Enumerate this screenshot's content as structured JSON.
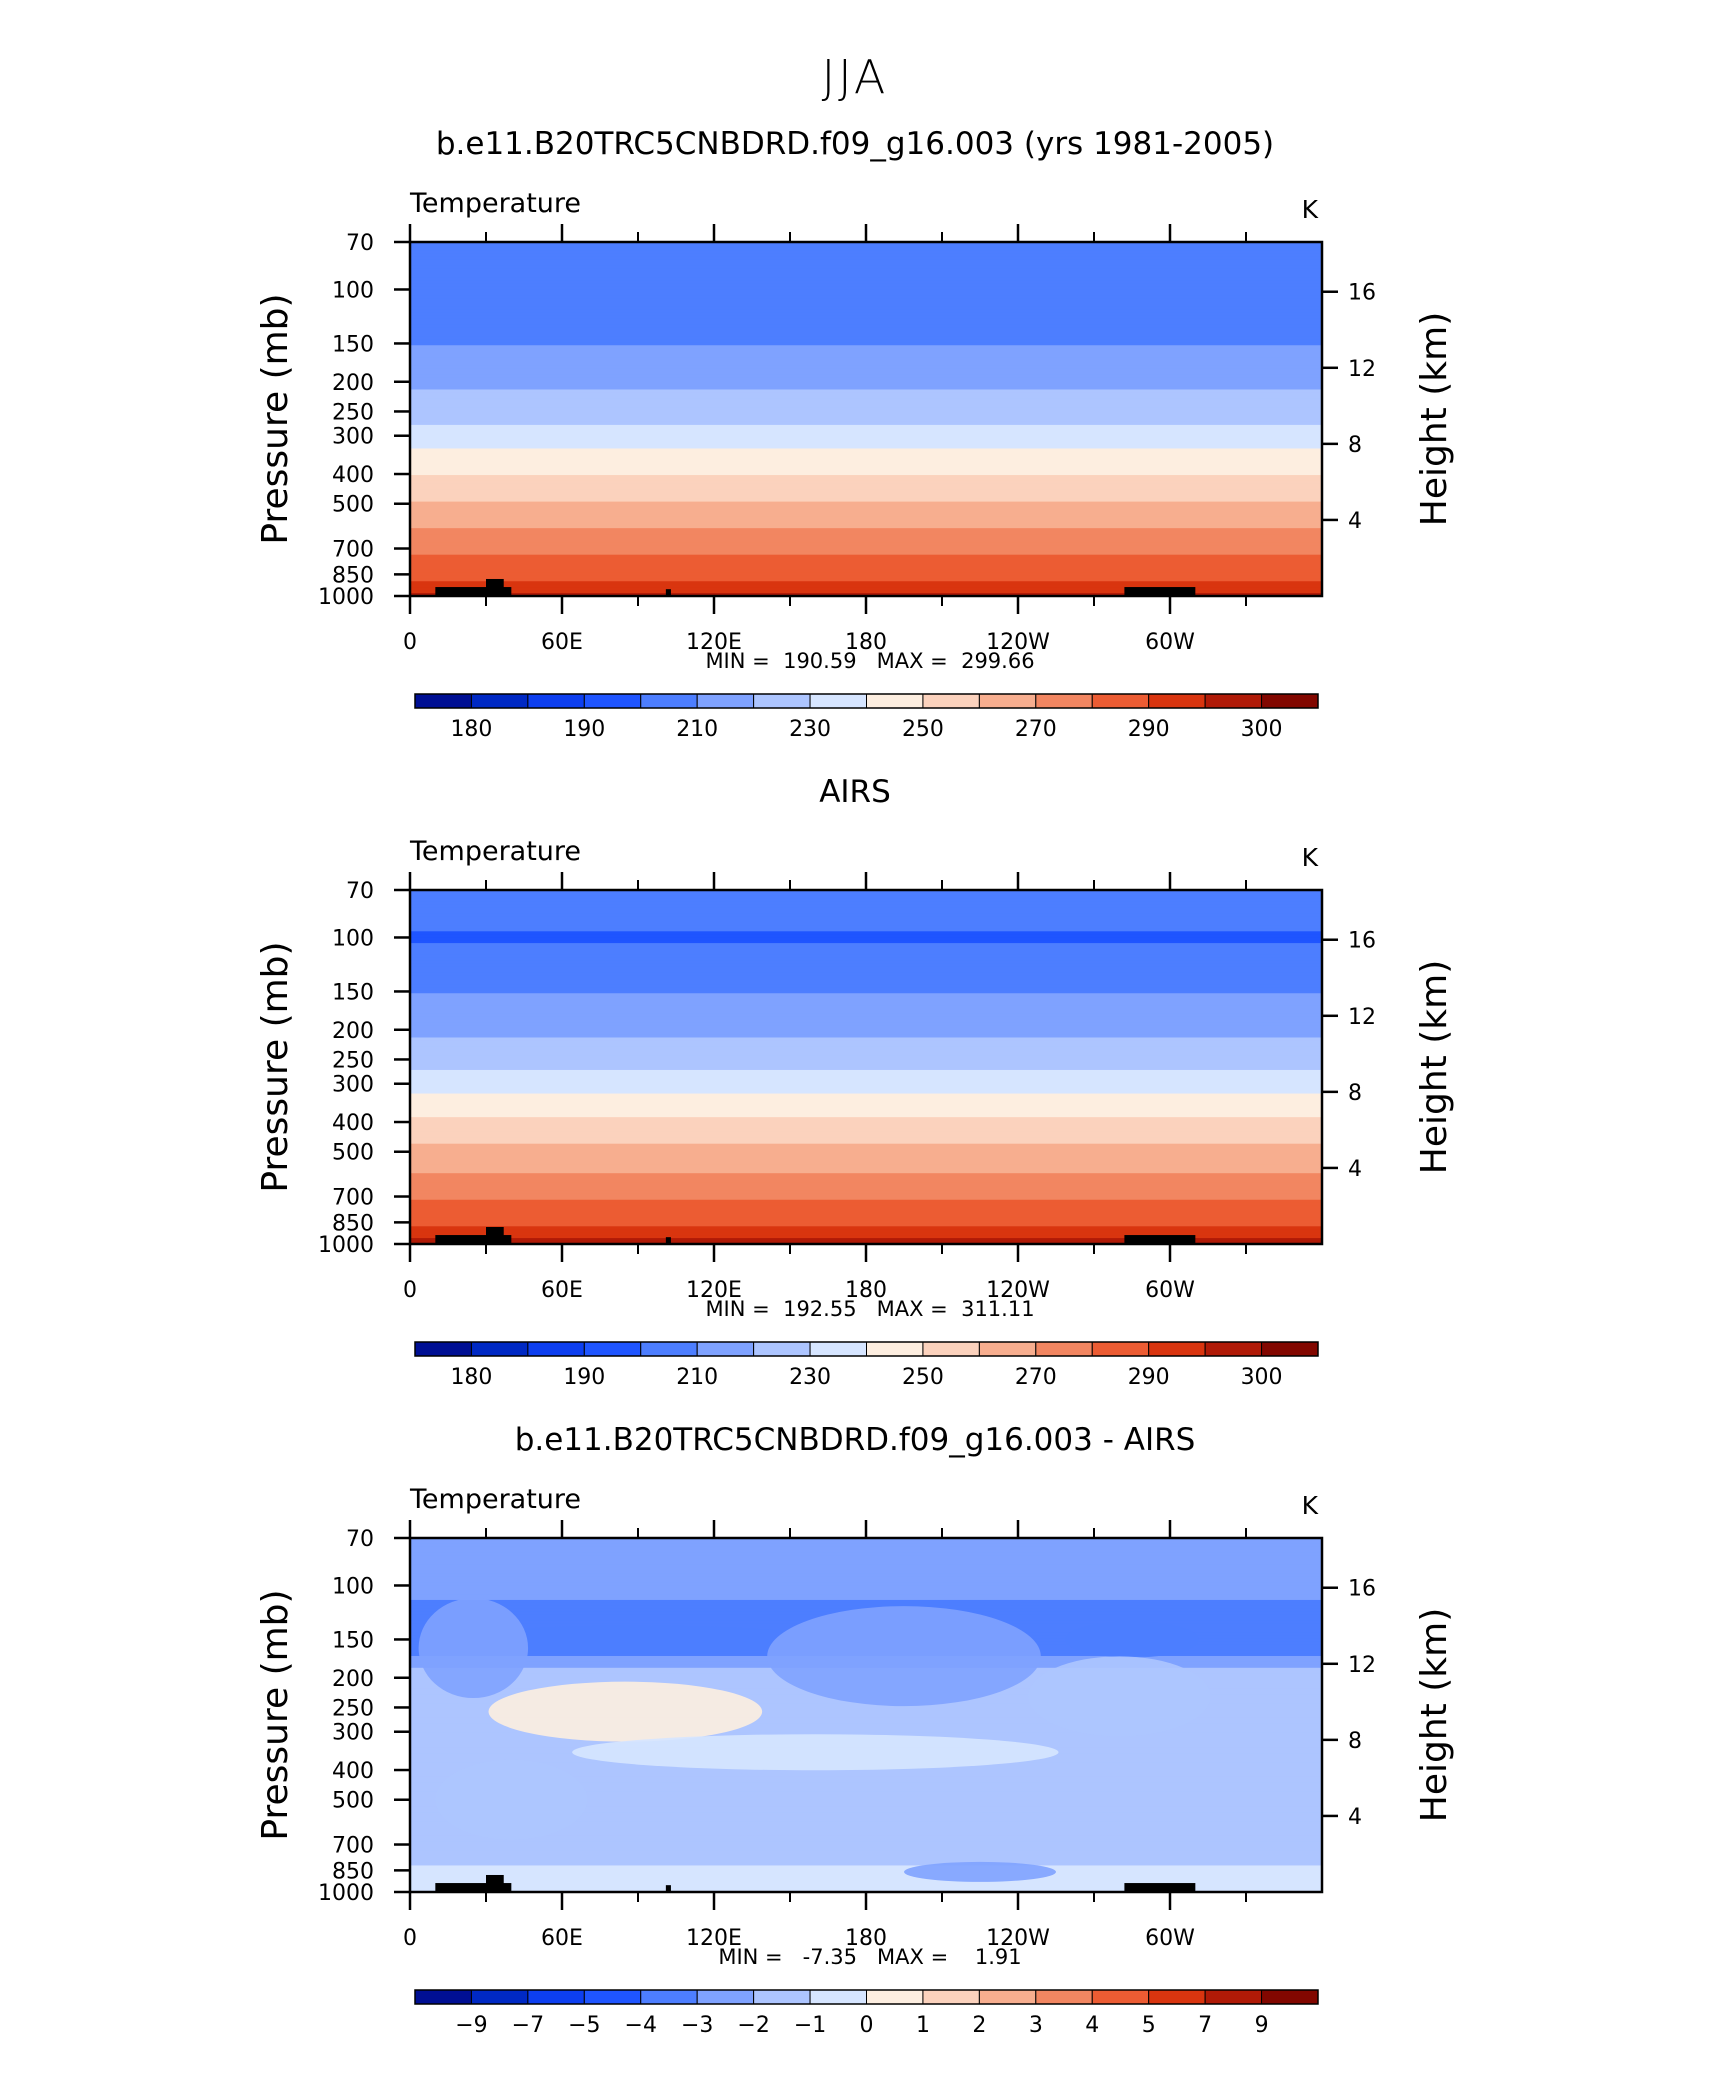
{
  "figure_title": "JJA",
  "colors": {
    "temp_scale": [
      "#000f93",
      "#0029c4",
      "#0d3ff0",
      "#1f55ff",
      "#4d7eff",
      "#7fa2ff",
      "#adc5ff",
      "#d6e5ff",
      "#fdeee0",
      "#fbd2bd",
      "#f7ae8f",
      "#f28661",
      "#ec5c33",
      "#d9350f",
      "#b01a07",
      "#820700"
    ],
    "land": "#000000"
  },
  "panels": [
    {
      "title": "b.e11.B20TRC5CNBDRD.f09_g16.003 (yrs 1981-2005)",
      "left_label": "Temperature",
      "right_label": "K",
      "stats": "MIN =  190.59   MAX =  299.66",
      "colorbar_labels": [
        "180",
        "190",
        "210",
        "230",
        "250",
        "270",
        "290",
        "300"
      ]
    },
    {
      "title": "AIRS",
      "left_label": "Temperature",
      "right_label": "K",
      "stats": "MIN =  192.55   MAX =  311.11",
      "colorbar_labels": [
        "180",
        "190",
        "210",
        "230",
        "250",
        "270",
        "290",
        "300"
      ]
    },
    {
      "title": "b.e11.B20TRC5CNBDRD.f09_g16.003 - AIRS",
      "left_label": "Temperature",
      "right_label": "K",
      "stats": "MIN =   -7.35   MAX =    1.91",
      "colorbar_labels": [
        "−9",
        "−7",
        "−5",
        "−4",
        "−3",
        "−2",
        "−1",
        "0",
        "1",
        "2",
        "3",
        "4",
        "5",
        "7",
        "9"
      ]
    }
  ],
  "chart_data": [
    {
      "type": "heatmap",
      "title": "b.e11.B20TRC5CNBDRD.f09_g16.003 (yrs 1981-2005)",
      "variable": "Temperature",
      "units": "K",
      "ylabel": "Pressure (mb)",
      "y2label": "Height (km)",
      "x_ticks": [
        "0",
        "60E",
        "120E",
        "180",
        "120W",
        "60W"
      ],
      "x_tick_values": [
        0,
        60,
        120,
        180,
        240,
        300
      ],
      "xlim": [
        0,
        360
      ],
      "y_ticks": [
        70,
        100,
        150,
        200,
        250,
        300,
        400,
        500,
        700,
        850,
        1000
      ],
      "ylim": [
        1000,
        70
      ],
      "y2_ticks": [
        4,
        8,
        12,
        16
      ],
      "levels": [
        180,
        185,
        190,
        200,
        210,
        220,
        230,
        240,
        250,
        260,
        270,
        280,
        290,
        295,
        300
      ],
      "profile_p": [
        70,
        100,
        130,
        160,
        200,
        250,
        300,
        370,
        450,
        550,
        650,
        750,
        850,
        925,
        1000
      ],
      "profile_t": [
        200,
        200,
        205,
        212,
        218,
        226,
        234,
        246,
        256,
        266,
        274,
        281,
        287,
        292,
        296
      ],
      "min": 190.59,
      "max": 299.66
    },
    {
      "type": "heatmap",
      "title": "AIRS",
      "variable": "Temperature",
      "units": "K",
      "ylabel": "Pressure (mb)",
      "y2label": "Height (km)",
      "x_ticks": [
        "0",
        "60E",
        "120E",
        "180",
        "120W",
        "60W"
      ],
      "x_tick_values": [
        0,
        60,
        120,
        180,
        240,
        300
      ],
      "xlim": [
        0,
        360
      ],
      "y_ticks": [
        70,
        100,
        150,
        200,
        250,
        300,
        400,
        500,
        700,
        850,
        1000
      ],
      "ylim": [
        1000,
        70
      ],
      "y2_ticks": [
        4,
        8,
        12,
        16
      ],
      "levels": [
        180,
        185,
        190,
        200,
        210,
        220,
        230,
        240,
        250,
        260,
        270,
        280,
        290,
        295,
        300
      ],
      "profile_p": [
        70,
        100,
        130,
        160,
        200,
        250,
        300,
        370,
        450,
        550,
        650,
        750,
        850,
        925,
        1000
      ],
      "profile_t": [
        208,
        199,
        205,
        212,
        218,
        226,
        236,
        248,
        258,
        267,
        275,
        282,
        288,
        293,
        298
      ],
      "min": 192.55,
      "max": 311.11
    },
    {
      "type": "heatmap",
      "title": "b.e11.B20TRC5CNBDRD.f09_g16.003 - AIRS",
      "variable": "Temperature",
      "units": "K",
      "ylabel": "Pressure (mb)",
      "y2label": "Height (km)",
      "x_ticks": [
        "0",
        "60E",
        "120E",
        "180",
        "120W",
        "60W"
      ],
      "x_tick_values": [
        0,
        60,
        120,
        180,
        240,
        300
      ],
      "xlim": [
        0,
        360
      ],
      "y_ticks": [
        70,
        100,
        150,
        200,
        250,
        300,
        400,
        500,
        700,
        850,
        1000
      ],
      "ylim": [
        1000,
        70
      ],
      "y2_ticks": [
        4,
        8,
        12,
        16
      ],
      "levels": [
        -9,
        -7,
        -5,
        -4,
        -3,
        -2,
        -1,
        0,
        1,
        2,
        3,
        4,
        5,
        7,
        9
      ],
      "profile_p": [
        70,
        100,
        130,
        160,
        200,
        250,
        300,
        370,
        450,
        550,
        650,
        750,
        850,
        925,
        1000
      ],
      "profile_t": [
        -2.4,
        -2.8,
        -3.3,
        -3.5,
        -1.3,
        -1.1,
        -1.4,
        -1.8,
        -1.6,
        -1.3,
        -1.9,
        -1.8,
        -0.7,
        -0.2,
        -0.6
      ],
      "min": -7.35,
      "max": 1.91
    }
  ]
}
